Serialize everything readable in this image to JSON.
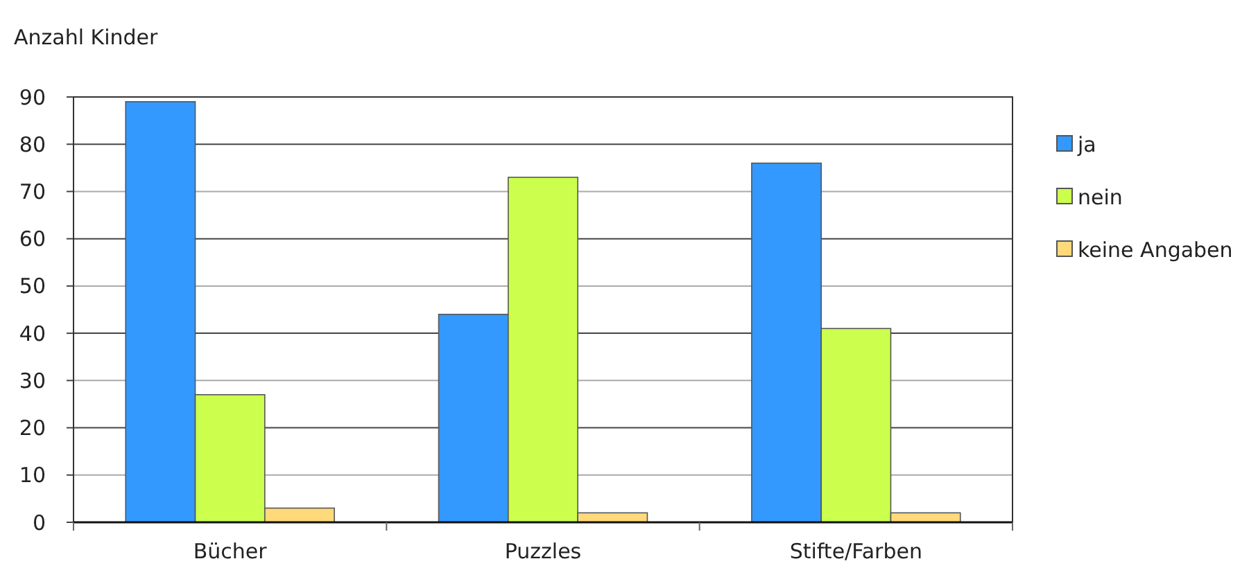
{
  "chart_data": {
    "type": "bar",
    "ylabel": "Anzahl Kinder",
    "categories": [
      "Bücher",
      "Puzzles",
      "Stifte/Farben"
    ],
    "series": [
      {
        "name": "ja",
        "color": "#3399ff",
        "values": [
          89,
          44,
          76
        ]
      },
      {
        "name": "nein",
        "color": "#ccff4d",
        "values": [
          27,
          73,
          41
        ]
      },
      {
        "name": "keine Angaben",
        "color": "#ffd97a",
        "values": [
          3,
          2,
          2
        ]
      }
    ],
    "ylim": [
      0,
      90
    ],
    "yticks": [
      0,
      10,
      20,
      30,
      40,
      50,
      60,
      70,
      80,
      90
    ],
    "grid": "y",
    "legend": "right"
  }
}
